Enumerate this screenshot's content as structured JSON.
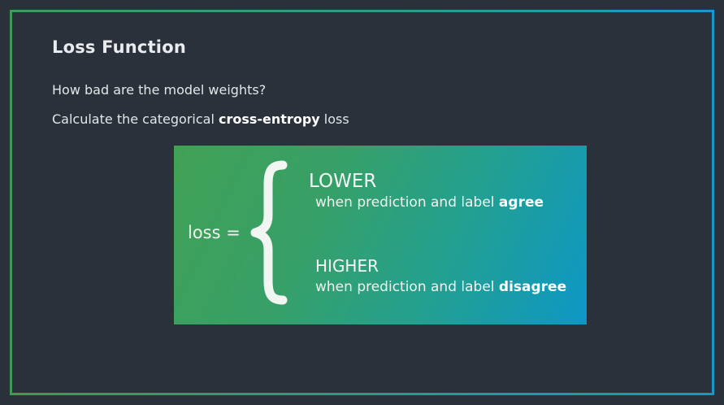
{
  "slide": {
    "title": "Loss Function",
    "line1": "How bad are the model weights?",
    "line2_prefix": "Calculate the categorical ",
    "line2_bold": "cross-entropy",
    "line2_suffix": " loss"
  },
  "panel": {
    "loss_label": "loss =",
    "lower": {
      "title": "LOWER",
      "desc_prefix": "when prediction and label ",
      "desc_bold": "agree"
    },
    "higher": {
      "title": "HIGHER",
      "desc_prefix": "when prediction and label ",
      "desc_bold": "disagree"
    }
  },
  "colors": {
    "background": "#2a313b",
    "frame_start": "#3f9a55",
    "frame_end": "#1b96c8",
    "panel_start": "#41a155",
    "panel_end": "#0d97c6"
  }
}
